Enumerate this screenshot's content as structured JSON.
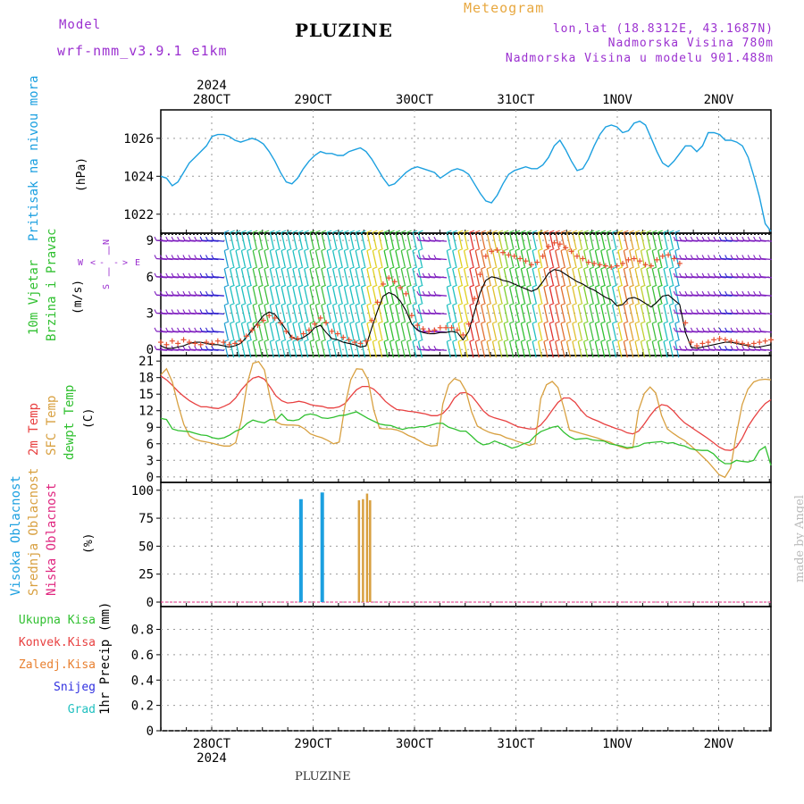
{
  "header": {
    "title": "PLUZINE",
    "meteogram": "Meteogram",
    "model_label": "Model",
    "model_name": "wrf-nmm_v3.9.1 e1km",
    "lonlat": "lon,lat (18.8312E, 43.1687N)",
    "elevation": "Nadmorska Visina 780m",
    "model_elevation": "Nadmorska Visina u modelu 901.488m",
    "footer": "PLUZINE",
    "made_by": "made by Angel"
  },
  "colors": {
    "pressure": "#1ca0e0",
    "temp2m": "#e84040",
    "sfc": "#d8a040",
    "dewpt": "#30c030",
    "high_cloud": "#1ca0e0",
    "mid_cloud": "#d8a040",
    "low_cloud": "#e02880",
    "wind_label": "#30c030",
    "compass": "#9b30d0"
  },
  "chart_data": [
    {
      "type": "line",
      "name": "pressure",
      "ylabel": "Pritisak na nivou mora",
      "unit": "(hPa)",
      "year": "2024",
      "date_ticks": [
        "28OCT",
        "29OCT",
        "30OCT",
        "31OCT",
        "1NOV",
        "2NOV"
      ],
      "ylim": [
        1021.0,
        1027.5
      ],
      "yticks": [
        1022,
        1024,
        1026
      ],
      "grid": true,
      "series": [
        {
          "color": "pressure",
          "values": [
            1024.0,
            1023.9,
            1023.5,
            1023.7,
            1024.2,
            1024.7,
            1025.0,
            1025.3,
            1025.6,
            1026.1,
            1026.2,
            1026.2,
            1026.1,
            1025.9,
            1025.8,
            1025.9,
            1026.0,
            1025.9,
            1025.7,
            1025.3,
            1024.8,
            1024.2,
            1023.7,
            1023.6,
            1023.9,
            1024.4,
            1024.8,
            1025.1,
            1025.3,
            1025.2,
            1025.2,
            1025.1,
            1025.1,
            1025.3,
            1025.4,
            1025.5,
            1025.3,
            1024.9,
            1024.4,
            1023.9,
            1023.5,
            1023.6,
            1023.9,
            1024.2,
            1024.4,
            1024.5,
            1024.4,
            1024.3,
            1024.2,
            1023.9,
            1024.1,
            1024.3,
            1024.4,
            1024.3,
            1024.1,
            1023.6,
            1023.1,
            1022.7,
            1022.6,
            1023.0,
            1023.6,
            1024.1,
            1024.3,
            1024.4,
            1024.5,
            1024.4,
            1024.4,
            1024.6,
            1025.0,
            1025.6,
            1025.9,
            1025.4,
            1024.8,
            1024.3,
            1024.4,
            1024.9,
            1025.6,
            1026.2,
            1026.6,
            1026.7,
            1026.6,
            1026.3,
            1026.4,
            1026.8,
            1026.9,
            1026.7,
            1026.0,
            1025.3,
            1024.7,
            1024.5,
            1024.8,
            1025.2,
            1025.6,
            1025.6,
            1025.3,
            1025.6,
            1026.3,
            1026.3,
            1026.2,
            1025.9,
            1025.9,
            1025.8,
            1025.6,
            1025.0,
            1024.0,
            1022.9,
            1021.5,
            1021.1
          ]
        }
      ]
    },
    {
      "type": "line",
      "name": "wind",
      "ylabel": "10m Vjetar",
      "ylabel2": "Brzina i Pravac",
      "unit": "(m/s)",
      "compass": {
        "n": "N",
        "s": "S",
        "w": "W",
        "e": "E",
        "arrow_l": "<",
        "arrow_r": ">",
        "dash": "-",
        "bar": "|",
        "sub": "α"
      },
      "ylim": [
        -0.5,
        9.6
      ],
      "yticks": [
        0,
        3,
        6,
        9
      ],
      "grid": true,
      "series": [
        {
          "color": "#000000",
          "values": [
            0.3,
            0.1,
            0.1,
            0.2,
            0.3,
            0.5,
            0.6,
            0.6,
            0.5,
            0.4,
            0.4,
            0.3,
            0.2,
            0.3,
            0.5,
            1.0,
            1.6,
            2.2,
            2.8,
            3.1,
            2.9,
            2.3,
            1.6,
            1.0,
            0.8,
            1.0,
            1.3,
            1.8,
            2.0,
            1.4,
            0.9,
            0.8,
            0.6,
            0.5,
            0.4,
            0.2,
            0.3,
            1.8,
            3.2,
            4.4,
            4.7,
            4.5,
            4.0,
            3.2,
            2.1,
            1.6,
            1.4,
            1.3,
            1.3,
            1.4,
            1.4,
            1.5,
            1.4,
            0.8,
            1.5,
            3.1,
            4.7,
            5.7,
            6.0,
            5.9,
            5.7,
            5.6,
            5.4,
            5.2,
            5.0,
            4.8,
            5.0,
            5.6,
            6.3,
            6.6,
            6.5,
            6.2,
            5.9,
            5.6,
            5.4,
            5.1,
            4.9,
            4.6,
            4.3,
            4.1,
            3.6,
            3.7,
            4.2,
            4.3,
            4.1,
            3.8,
            3.5,
            3.9,
            4.4,
            4.5,
            4.1,
            3.7,
            1.4,
            0.2,
            0.1,
            0.2,
            0.3,
            0.4,
            0.5,
            0.6,
            0.6,
            0.5,
            0.4,
            0.3,
            0.2,
            0.2,
            0.3,
            0.4
          ]
        }
      ],
      "gust_samples": [
        0.6,
        0.4,
        0.7,
        0.5,
        0.8,
        0.6,
        0.5,
        0.4,
        0.6,
        0.5,
        0.7,
        0.6,
        0.4,
        0.5,
        0.7,
        1.1,
        1.6,
        2.0,
        2.4,
        2.8,
        2.6,
        2.2,
        1.5,
        1.0,
        0.9,
        1.3,
        1.6,
        2.1,
        2.6,
        2.2,
        1.5,
        1.3,
        1.0,
        0.8,
        0.6,
        0.5,
        0.7,
        2.4,
        3.9,
        5.4,
        5.9,
        5.6,
        5.1,
        4.6,
        2.8,
        2.0,
        1.7,
        1.5,
        1.6,
        1.8,
        1.8,
        1.8,
        1.6,
        1.2,
        2.1,
        4.2,
        6.2,
        7.7,
        8.1,
        8.2,
        8.0,
        7.8,
        7.7,
        7.5,
        7.3,
        7.0,
        7.2,
        7.7,
        8.5,
        8.8,
        8.7,
        8.4,
        8.1,
        7.7,
        7.5,
        7.2,
        7.1,
        7.0,
        6.9,
        6.8,
        6.9,
        7.1,
        7.4,
        7.5,
        7.3,
        7.0,
        6.9,
        7.4,
        7.7,
        7.8,
        7.5,
        7.1,
        2.2,
        0.6,
        0.3,
        0.5,
        0.6,
        0.8,
        0.9,
        0.8,
        0.7,
        0.6,
        0.5,
        0.4,
        0.5,
        0.6,
        0.7,
        0.8
      ],
      "barb_colors": [
        "#8020c0",
        "#8020c0",
        "#8020c0",
        "#8020c0",
        "#8020c0",
        "#8020c0",
        "#8020c0",
        "#8020c0",
        "#3020d0",
        "#3020d0",
        "#3020d0",
        "#20a0d0",
        "#20c0c0",
        "#20c0c0",
        "#20c0c0",
        "#20c0c0",
        "#40c040",
        "#40c040",
        "#40c040",
        "#20c0c0",
        "#20c0c0",
        "#20c0c0",
        "#20c0c0",
        "#20c0c0",
        "#20c0c0",
        "#20c0c0",
        "#40c040",
        "#40c040",
        "#40c040",
        "#20c0c0",
        "#20c0c0",
        "#20c0c0",
        "#20c0c0",
        "#20c0c0",
        "#20c0c0",
        "#20c0c0",
        "#e0d020",
        "#e0d020",
        "#e0d020",
        "#30c030",
        "#30c030",
        "#30c030",
        "#40c040",
        "#40c040",
        "#20c0c0",
        "#20c0c0",
        "#8020c0",
        "#8020c0",
        "#8020c0",
        "#8020c0",
        "#20c0c0",
        "#20c0c0",
        "#e0d020",
        "#e0d020",
        "#e03030",
        "#e05030",
        "#e07030",
        "#e0a030",
        "#e0c030",
        "#c0d030",
        "#80d030",
        "#40c040",
        "#30c030",
        "#30c030",
        "#40c040",
        "#20c0c0",
        "#e0d020",
        "#e07030",
        "#e03030",
        "#e05030",
        "#e07030",
        "#e0a030",
        "#e0c030",
        "#c0d030",
        "#80d030",
        "#40c040",
        "#30c030",
        "#30c030",
        "#40c040",
        "#20c0c0",
        "#e0d020",
        "#e07030",
        "#e0a030",
        "#e0c030",
        "#c0d030",
        "#80d030",
        "#40c040",
        "#30c030",
        "#20c0c0",
        "#20c0c0",
        "#20a0d0",
        "#8020c0",
        "#8020c0",
        "#8020c0",
        "#8020c0",
        "#8020c0",
        "#8020c0",
        "#8020c0",
        "#8020c0",
        "#3020d0",
        "#3020d0",
        "#8020c0",
        "#8020c0",
        "#8020c0",
        "#8020c0",
        "#8020c0",
        "#8020c0"
      ]
    },
    {
      "type": "line",
      "name": "temperature",
      "ylabels": [
        "2m Temp",
        "SFC Temp",
        "dewpt Temp"
      ],
      "unit": "(C)",
      "ylim": [
        -1,
        22
      ],
      "yticks": [
        0,
        3,
        6,
        9,
        12,
        15,
        18,
        21
      ],
      "grid": true,
      "series": [
        {
          "name": "2m Temp",
          "color": "temp2m",
          "values": [
            18.3,
            17.6,
            16.6,
            15.5,
            14.6,
            13.8,
            13.2,
            12.7,
            12.7,
            12.5,
            12.4,
            12.8,
            13.3,
            14.3,
            15.8,
            17.0,
            17.9,
            18.2,
            17.7,
            16.3,
            14.7,
            13.8,
            13.4,
            13.5,
            13.7,
            13.5,
            13.1,
            12.9,
            12.8,
            12.5,
            12.5,
            12.7,
            13.3,
            14.6,
            15.8,
            16.4,
            16.4,
            15.9,
            14.9,
            13.7,
            12.9,
            12.2,
            12.1,
            11.9,
            11.8,
            11.6,
            11.4,
            11.1,
            11.1,
            11.5,
            12.6,
            14.3,
            15.2,
            15.3,
            14.7,
            13.4,
            12.0,
            11.1,
            10.7,
            10.4,
            10.1,
            9.6,
            9.1,
            8.9,
            8.7,
            8.7,
            9.4,
            10.6,
            12.1,
            13.5,
            14.3,
            14.3,
            13.5,
            12.1,
            11.0,
            10.5,
            10.1,
            9.6,
            9.2,
            8.8,
            8.5,
            8.0,
            7.8,
            8.3,
            9.6,
            11.1,
            12.4,
            13.1,
            12.9,
            12.0,
            10.8,
            9.8,
            9.1,
            8.4,
            7.7,
            7.0,
            6.2,
            5.4,
            4.9,
            4.8,
            5.4,
            7.0,
            9.1,
            10.7,
            12.1,
            13.3,
            14.0
          ]
        },
        {
          "name": "SFC Temp",
          "color": "sfc",
          "values": [
            18.5,
            19.6,
            17.2,
            13.1,
            9.5,
            7.4,
            6.8,
            6.5,
            6.3,
            6.1,
            5.8,
            5.6,
            5.6,
            6.2,
            10.3,
            16.9,
            20.6,
            20.9,
            19.4,
            14.3,
            10.0,
            9.5,
            9.4,
            9.4,
            9.3,
            8.7,
            7.8,
            7.4,
            7.1,
            6.6,
            6.0,
            6.3,
            12.9,
            17.6,
            19.6,
            19.5,
            17.6,
            12.1,
            8.8,
            8.7,
            8.7,
            8.5,
            8.1,
            7.5,
            7.1,
            6.5,
            5.9,
            5.6,
            5.7,
            13.2,
            16.7,
            17.8,
            17.4,
            15.6,
            11.8,
            9.2,
            8.6,
            8.1,
            7.8,
            7.6,
            7.1,
            6.8,
            6.4,
            6.1,
            5.7,
            6.0,
            14.2,
            16.7,
            17.3,
            16.2,
            12.6,
            8.5,
            8.2,
            7.9,
            7.6,
            7.3,
            7.0,
            6.6,
            6.3,
            5.8,
            5.4,
            5.1,
            5.3,
            12.1,
            15.1,
            16.3,
            15.2,
            11.1,
            8.7,
            7.9,
            7.2,
            6.6,
            5.7,
            4.8,
            3.8,
            2.8,
            1.6,
            0.4,
            -0.1,
            1.6,
            7.8,
            13.1,
            15.9,
            17.2,
            17.6,
            17.7,
            17.6
          ]
        },
        {
          "name": "dewpt Temp",
          "color": "dewpt",
          "values": [
            10.6,
            10.4,
            8.7,
            8.4,
            8.3,
            8.2,
            7.9,
            7.6,
            7.5,
            7.1,
            6.9,
            7.1,
            7.6,
            8.3,
            8.7,
            9.7,
            10.3,
            10.0,
            9.8,
            10.4,
            10.3,
            11.4,
            10.3,
            10.2,
            10.4,
            11.2,
            11.4,
            11.2,
            10.7,
            10.6,
            10.8,
            11.1,
            11.2,
            11.5,
            11.8,
            11.2,
            10.6,
            10.1,
            9.6,
            9.4,
            9.3,
            8.9,
            8.6,
            8.9,
            8.9,
            9.1,
            9.1,
            9.4,
            9.7,
            9.7,
            9.0,
            8.7,
            8.3,
            8.3,
            7.4,
            6.4,
            5.8,
            6.0,
            6.5,
            6.1,
            5.7,
            5.2,
            5.5,
            6.0,
            6.3,
            7.4,
            8.2,
            8.6,
            9.0,
            9.2,
            8.1,
            7.3,
            6.8,
            6.9,
            7.0,
            6.7,
            6.6,
            6.5,
            6.0,
            5.8,
            5.6,
            5.3,
            5.4,
            5.6,
            6.1,
            6.2,
            6.3,
            6.4,
            6.1,
            6.2,
            5.8,
            5.6,
            5.1,
            4.9,
            4.8,
            4.8,
            4.2,
            3.1,
            2.4,
            2.4,
            3.0,
            2.8,
            2.7,
            3.0,
            4.8,
            5.5,
            2.1
          ]
        }
      ]
    },
    {
      "type": "bar",
      "name": "clouds",
      "ylabels": [
        "Visoka Oblacnost",
        "Srednja Oblacnost",
        "Niska Oblacnost"
      ],
      "unit": "(%)",
      "ylim": [
        -4,
        107
      ],
      "yticks": [
        0,
        25,
        50,
        75,
        100
      ],
      "grid": true,
      "high_bars": [
        {
          "day": 1.88,
          "value": 92
        },
        {
          "day": 2.09,
          "value": 98
        }
      ],
      "mid_bars": [
        {
          "day": 2.45,
          "value": 91
        },
        {
          "day": 2.49,
          "value": 92
        },
        {
          "day": 2.53,
          "value": 97
        },
        {
          "day": 2.56,
          "value": 91
        }
      ],
      "low_bars": []
    },
    {
      "type": "bar",
      "name": "precip",
      "legend": [
        "Ukupna Kisa",
        "Konvek.Kisa",
        "Zaledj.Kisa",
        "Snijeg",
        "Grad"
      ],
      "legend_colors": [
        "#30c030",
        "#e84040",
        "#e88030",
        "#3030e0",
        "#20c0c0"
      ],
      "unit": "1hr Precip (mm)",
      "ylim": [
        0,
        0.98
      ],
      "yticks": [
        "0",
        "0.2",
        "0.4",
        "0.6",
        "0.8"
      ],
      "grid": true,
      "values": [],
      "date_ticks": [
        "28OCT",
        "29OCT",
        "30OCT",
        "31OCT",
        "1NOV",
        "2NOV"
      ],
      "year": "2024"
    }
  ]
}
